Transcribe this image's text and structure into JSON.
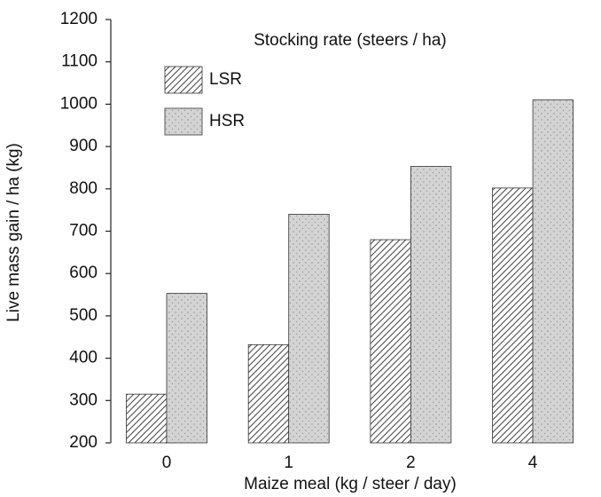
{
  "chart_data": {
    "type": "bar",
    "legend_title": "Stocking rate (steers / ha)",
    "x_label": "Maize meal (kg / steer / day)",
    "y_label": "Live mass gain / ha (kg)",
    "categories": [
      "0",
      "1",
      "2",
      "4"
    ],
    "series": [
      {
        "name": "LSR",
        "color": "#444444",
        "values": [
          315,
          432,
          680,
          802
        ]
      },
      {
        "name": "HSR",
        "color": "#d4d4d4",
        "values": [
          553,
          740,
          853,
          1010
        ]
      }
    ],
    "ylim": [
      200,
      1200
    ],
    "yticks": [
      200,
      300,
      400,
      500,
      600,
      700,
      800,
      900,
      1000,
      1100,
      1200
    ],
    "legend": "upper-left"
  }
}
